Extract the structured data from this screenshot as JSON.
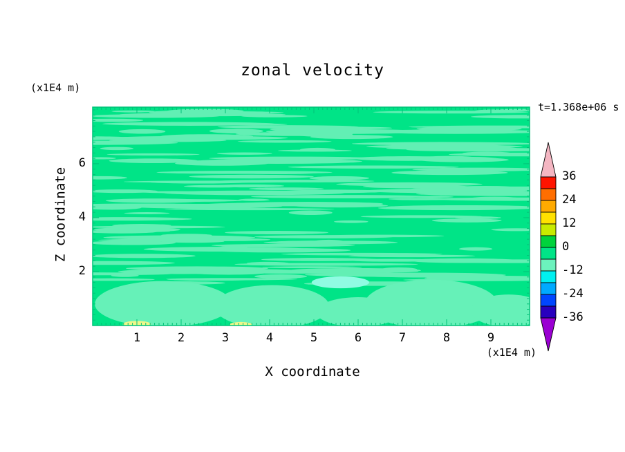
{
  "title": "zonal velocity",
  "annotations": {
    "time_label": "t=1.368e+06 s",
    "top_left_unit": "(x1E4 m)",
    "bottom_right_unit": "(x1E4 m)"
  },
  "axes": {
    "x_label": "X coordinate",
    "y_label": "Z coordinate",
    "x_ticks": [
      1,
      2,
      3,
      4,
      5,
      6,
      7,
      8,
      9
    ],
    "y_ticks": [
      2,
      4,
      6
    ]
  },
  "colorbar": {
    "labels": [
      36,
      24,
      12,
      0,
      -12,
      -24,
      -36
    ],
    "colors_top_to_bottom": [
      "#ff1400",
      "#ff6e00",
      "#ffaa00",
      "#ffe100",
      "#c8eb00",
      "#00d23c",
      "#00e487",
      "#6cf2bd",
      "#00f0f0",
      "#00aaff",
      "#0046ff",
      "#2800be"
    ],
    "arrow_top_color": "#f4b6c2",
    "arrow_bottom_color": "#9a00d2"
  },
  "chart_data": {
    "type": "heatmap",
    "title": "zonal velocity",
    "xlabel": "X coordinate (x1E4 m)",
    "ylabel": "Z coordinate (x1E4 m)",
    "xlim": [
      0,
      9.875
    ],
    "ylim": [
      0,
      8.1
    ],
    "x_ticks": [
      1,
      2,
      3,
      4,
      5,
      6,
      7,
      8,
      9
    ],
    "y_ticks": [
      2,
      4,
      6
    ],
    "time_annotation": "t=1.368e+06 s",
    "contour_interval": 6,
    "contour_levels": [
      -36,
      -30,
      -24,
      -18,
      -12,
      -6,
      0,
      6,
      12,
      18,
      24,
      30,
      36
    ],
    "colorbar_labels": [
      36,
      24,
      12,
      0,
      -12,
      -24,
      -36
    ],
    "legend_position": "right",
    "grid": false,
    "field_summary": "zonal velocity field dominated by the -6..0 and 0..6 contour bands (spring green) with thin lighter streak bands above z=1.6, broad pale-green lobes below z=1.7, a small cyan patch near x=5.6 z=1.6, and tiny yellow spots on the bottom boundary near x=1 and x=3.4",
    "base_color": "#00e487",
    "frame_color": "#00c278",
    "texture": {
      "seed": 20,
      "streak_count": 170,
      "band_z": [
        1.55,
        8.02
      ],
      "len_min": 0.3,
      "len_max": 2.1,
      "th_min": 0.035,
      "th_max": 0.09,
      "color": "#62efb4"
    },
    "features": [
      {
        "x": 1.6,
        "z": 0.8,
        "rx": 1.55,
        "rz": 0.85,
        "color": "#66f1b8"
      },
      {
        "x": 4.05,
        "z": 0.7,
        "rx": 1.3,
        "rz": 0.8,
        "color": "#66f1b8"
      },
      {
        "x": 6.0,
        "z": 0.5,
        "rx": 0.95,
        "rz": 0.55,
        "color": "#66f1b8"
      },
      {
        "x": 7.65,
        "z": 0.8,
        "rx": 1.5,
        "rz": 0.9,
        "color": "#66f1b8"
      },
      {
        "x": 9.4,
        "z": 0.55,
        "rx": 0.85,
        "rz": 0.6,
        "color": "#66f1b8"
      },
      {
        "x": 5.6,
        "z": 1.6,
        "rx": 0.65,
        "rz": 0.22,
        "color": "#90fbe2"
      },
      {
        "x": 1.0,
        "z": 0.05,
        "rx": 0.32,
        "rz": 0.12,
        "color": "#eef78a"
      },
      {
        "x": 3.35,
        "z": 0.03,
        "rx": 0.26,
        "rz": 0.1,
        "color": "#eef78a"
      }
    ]
  }
}
